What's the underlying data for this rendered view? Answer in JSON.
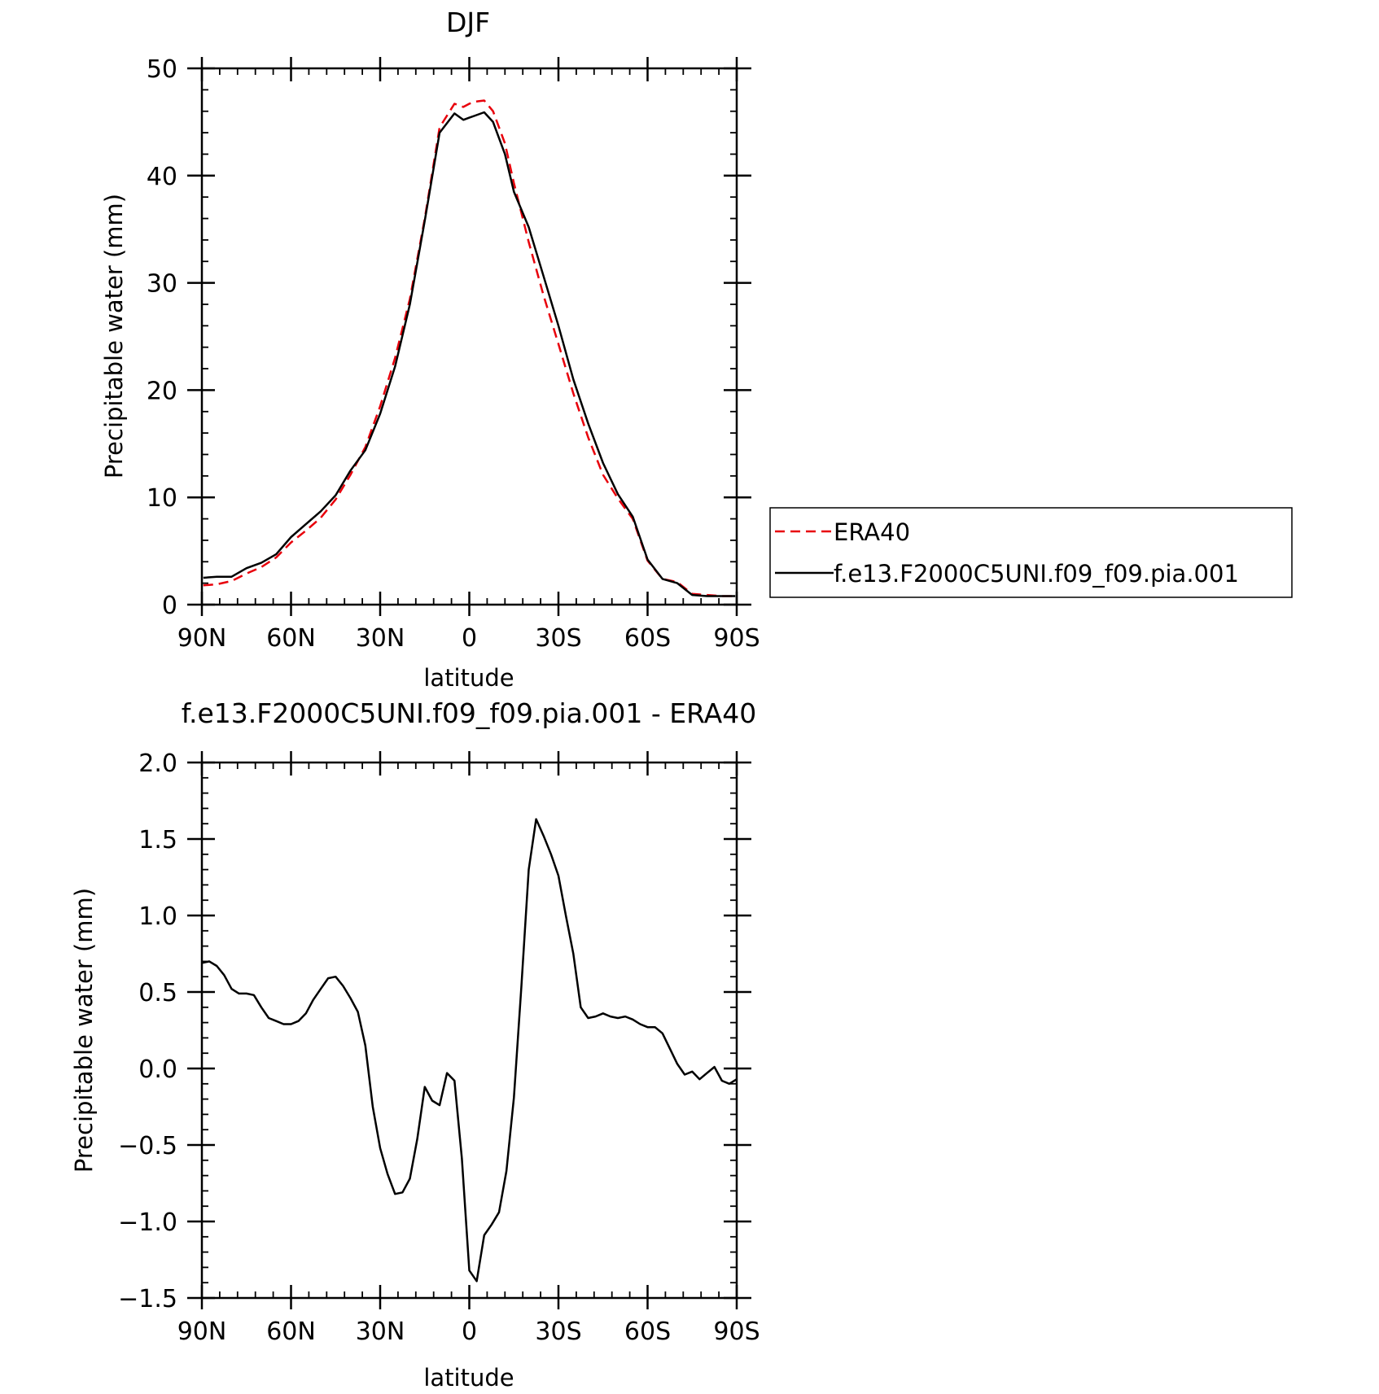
{
  "chart_data": [
    {
      "type": "line",
      "title": "DJF",
      "xlabel": "latitude",
      "ylabel": "Precipitable water (mm)",
      "xlim": [
        90,
        -90
      ],
      "ylim": [
        0,
        50
      ],
      "xticks": [
        90,
        60,
        30,
        0,
        -30,
        -60,
        -90
      ],
      "xtick_labels": [
        "90N",
        "60N",
        "30N",
        "0",
        "30S",
        "60S",
        "90S"
      ],
      "yticks": [
        0,
        10,
        20,
        30,
        40,
        50
      ],
      "ytick_labels": [
        "0",
        "10",
        "20",
        "30",
        "40",
        "50"
      ],
      "legend_position": "right-bottom, outside plot",
      "series": [
        {
          "name": "ERA40",
          "color": "#e8000b",
          "style": "dashed",
          "x": [
            89.5,
            85,
            80,
            75,
            70,
            65,
            60,
            55,
            50,
            45,
            40,
            35,
            30,
            25,
            20,
            15,
            10,
            5,
            2,
            0,
            -2,
            -5,
            -8,
            -12,
            -15,
            -20,
            -25,
            -30,
            -35,
            -40,
            -45,
            -50,
            -55,
            -60,
            -65,
            -70,
            -75,
            -80,
            -85,
            -89.5
          ],
          "y": [
            1.8,
            1.9,
            2.2,
            2.9,
            3.5,
            4.4,
            5.8,
            6.9,
            8.1,
            9.8,
            12.1,
            14.7,
            18.5,
            23.0,
            28.5,
            36.0,
            44.5,
            46.7,
            46.4,
            46.7,
            46.9,
            47.0,
            46.0,
            43.0,
            39.3,
            33.8,
            28.8,
            24.3,
            19.7,
            15.6,
            12.1,
            9.9,
            8.0,
            4.1,
            2.4,
            2.1,
            1.0,
            0.9,
            0.8,
            0.8
          ]
        },
        {
          "name": "f.e13.F2000C5UNI.f09_f09.pia.001",
          "color": "#000000",
          "style": "solid",
          "x": [
            89.5,
            85,
            80,
            75,
            70,
            65,
            60,
            55,
            50,
            45,
            40,
            35,
            30,
            25,
            20,
            15,
            10,
            5,
            2,
            0,
            -2,
            -5,
            -8,
            -12,
            -15,
            -20,
            -25,
            -30,
            -35,
            -40,
            -45,
            -50,
            -55,
            -60,
            -65,
            -70,
            -75,
            -80,
            -85,
            -89.5
          ],
          "y": [
            2.5,
            2.6,
            2.6,
            3.4,
            3.9,
            4.7,
            6.3,
            7.5,
            8.7,
            10.2,
            12.5,
            14.4,
            17.8,
            22.2,
            28.0,
            35.8,
            44.0,
            45.8,
            45.2,
            45.4,
            45.6,
            45.9,
            45.0,
            42.0,
            38.5,
            35.2,
            30.6,
            26.0,
            21.0,
            16.9,
            13.2,
            10.3,
            8.2,
            4.2,
            2.4,
            2.0,
            0.9,
            0.8,
            0.8,
            0.8
          ]
        }
      ]
    },
    {
      "type": "line",
      "title": "f.e13.F2000C5UNI.f09_f09.pia.001 - ERA40",
      "xlabel": "latitude",
      "ylabel": "Precipitable water (mm)",
      "xlim": [
        90,
        -90
      ],
      "ylim": [
        -1.5,
        2.0
      ],
      "xticks": [
        90,
        60,
        30,
        0,
        -30,
        -60,
        -90
      ],
      "xtick_labels": [
        "90N",
        "60N",
        "30N",
        "0",
        "30S",
        "60S",
        "90S"
      ],
      "yticks": [
        -1.5,
        -1.0,
        -0.5,
        0.0,
        0.5,
        1.0,
        1.5,
        2.0
      ],
      "ytick_labels": [
        "−1.5",
        "−1.0",
        "−0.5",
        "0.0",
        "0.5",
        "1.0",
        "1.5",
        "2.0"
      ],
      "series": [
        {
          "color": "#000000",
          "style": "solid",
          "x": [
            90,
            87.5,
            85,
            82.5,
            80,
            77.5,
            75,
            72.5,
            70,
            67.5,
            65,
            62.5,
            60,
            57.5,
            55,
            52.5,
            50,
            47.5,
            45,
            42.5,
            40,
            37.5,
            35,
            32.5,
            30,
            27.5,
            25,
            22.5,
            20,
            17.5,
            15,
            12.5,
            10,
            7.5,
            5,
            2.5,
            0,
            -2.5,
            -5,
            -7.5,
            -10,
            -12.5,
            -15,
            -17.5,
            -20,
            -22.5,
            -25,
            -27.5,
            -30,
            -32.5,
            -35,
            -37.5,
            -40,
            -42.5,
            -45,
            -47.5,
            -50,
            -52.5,
            -55,
            -57.5,
            -60,
            -62.5,
            -65,
            -67.5,
            -70,
            -72.5,
            -75,
            -77.5,
            -80,
            -82.5,
            -85,
            -87.5,
            -90
          ],
          "y": [
            0.69,
            0.7,
            0.67,
            0.61,
            0.52,
            0.49,
            0.49,
            0.48,
            0.4,
            0.33,
            0.31,
            0.29,
            0.29,
            0.31,
            0.36,
            0.45,
            0.52,
            0.59,
            0.6,
            0.54,
            0.46,
            0.37,
            0.15,
            -0.25,
            -0.52,
            -0.69,
            -0.82,
            -0.81,
            -0.72,
            -0.46,
            -0.12,
            -0.21,
            -0.24,
            -0.03,
            -0.08,
            -0.59,
            -1.32,
            -1.39,
            -1.09,
            -1.02,
            -0.94,
            -0.67,
            -0.19,
            0.53,
            1.3,
            1.63,
            1.52,
            1.4,
            1.26,
            1.0,
            0.75,
            0.4,
            0.33,
            0.34,
            0.36,
            0.34,
            0.33,
            0.34,
            0.32,
            0.29,
            0.27,
            0.27,
            0.23,
            0.13,
            0.03,
            -0.04,
            -0.02,
            -0.07,
            -0.03,
            0.01,
            -0.08,
            -0.1,
            -0.07
          ]
        }
      ]
    }
  ]
}
